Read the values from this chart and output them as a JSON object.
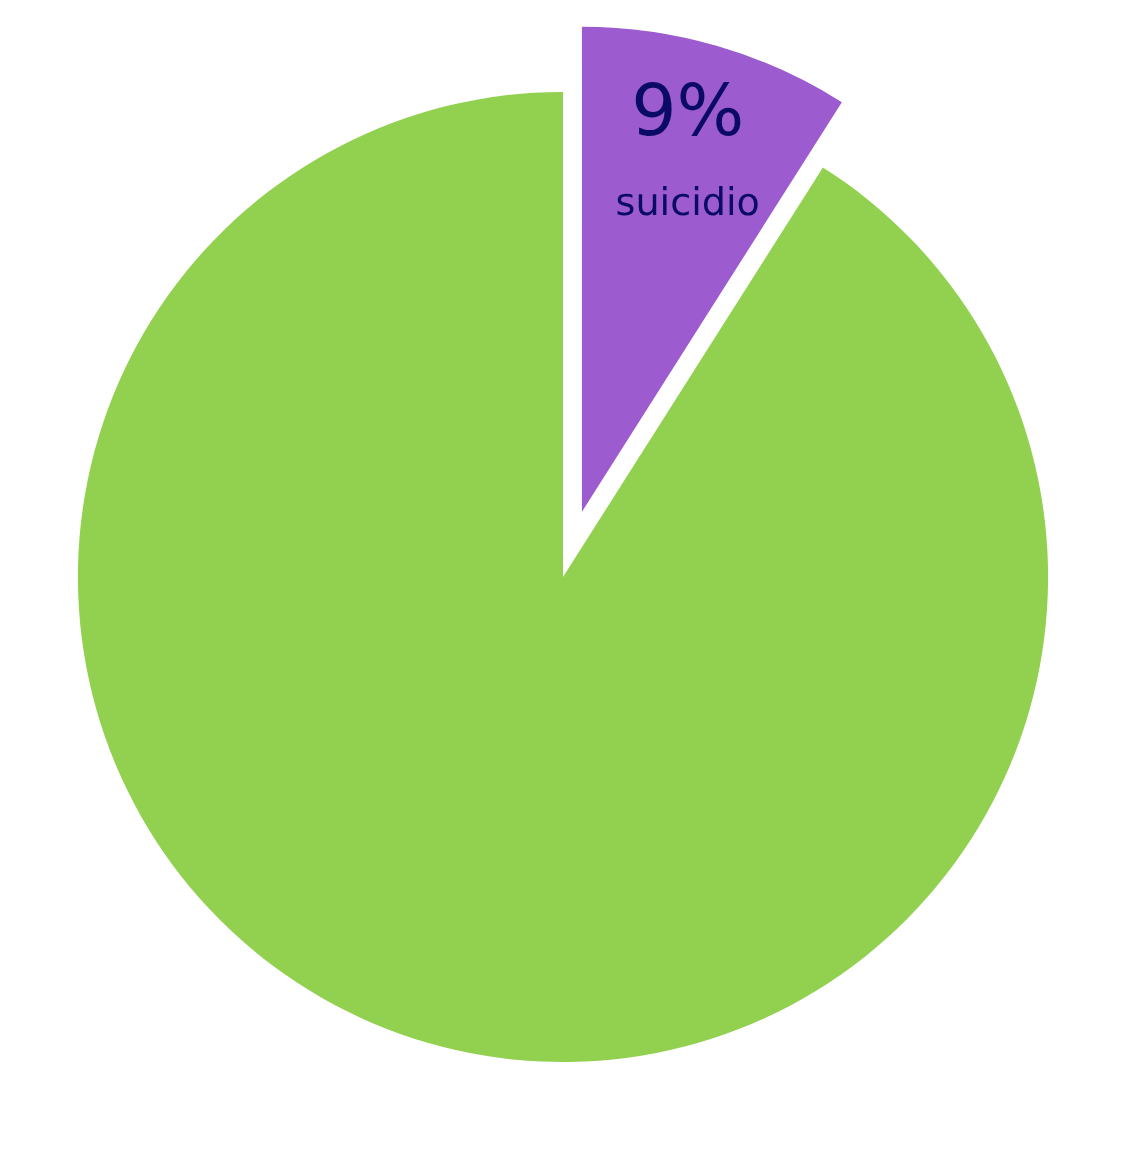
{
  "chart_data": {
    "type": "pie",
    "categories": [
      "suicidio",
      null
    ],
    "values": [
      9,
      91
    ],
    "colors": [
      "#9c5ccf",
      "#92d050"
    ],
    "value_labels": [
      "9%",
      null
    ],
    "legend": false
  }
}
